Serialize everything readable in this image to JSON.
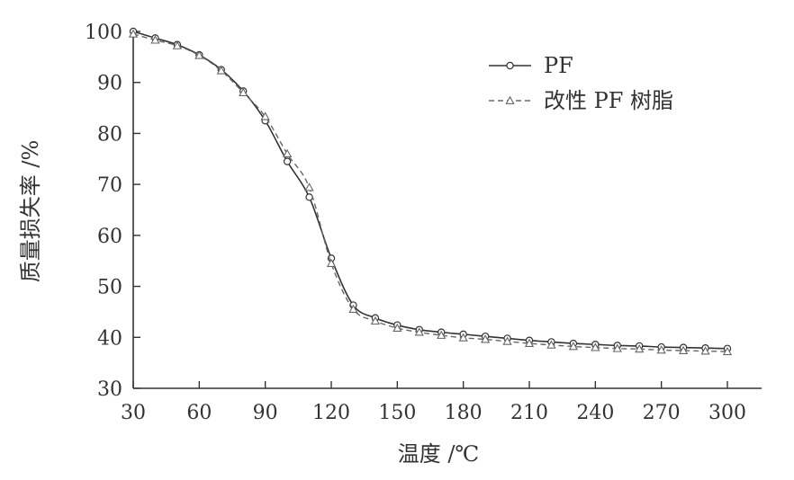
{
  "chart_data": {
    "type": "line",
    "xlabel": "温度 /℃",
    "ylabel": "质量损失率 /%",
    "xlim": [
      30,
      300
    ],
    "ylim": [
      30,
      100
    ],
    "xticks": [
      30,
      60,
      90,
      120,
      150,
      180,
      210,
      240,
      270,
      300
    ],
    "yticks": [
      30,
      40,
      50,
      60,
      70,
      80,
      90,
      100
    ],
    "grid": false,
    "legend_position": "top-right",
    "x": [
      30,
      40,
      50,
      60,
      70,
      80,
      90,
      100,
      110,
      120,
      130,
      140,
      150,
      160,
      170,
      180,
      190,
      200,
      210,
      220,
      230,
      240,
      250,
      260,
      270,
      280,
      290,
      300
    ],
    "series": [
      {
        "name": "PF",
        "line_style": "solid",
        "marker": "circle",
        "color": "#333333",
        "values": [
          100,
          98.7,
          97.4,
          95.4,
          92.5,
          88.3,
          82.5,
          74.5,
          67.5,
          55.5,
          46.3,
          43.8,
          42.4,
          41.5,
          41.0,
          40.6,
          40.2,
          39.8,
          39.4,
          39.1,
          38.8,
          38.6,
          38.4,
          38.3,
          38.1,
          38.0,
          37.9,
          37.8
        ]
      },
      {
        "name": "改性 PF 树脂",
        "line_style": "dashed",
        "marker": "triangle",
        "color": "#666666",
        "values": [
          99.5,
          98.3,
          97.2,
          95.3,
          92.3,
          88.0,
          83.3,
          76.0,
          69.4,
          54.5,
          45.5,
          43.2,
          41.8,
          41.0,
          40.4,
          39.9,
          39.6,
          39.2,
          38.8,
          38.5,
          38.2,
          38.0,
          37.8,
          37.7,
          37.5,
          37.4,
          37.3,
          37.2
        ]
      }
    ]
  }
}
